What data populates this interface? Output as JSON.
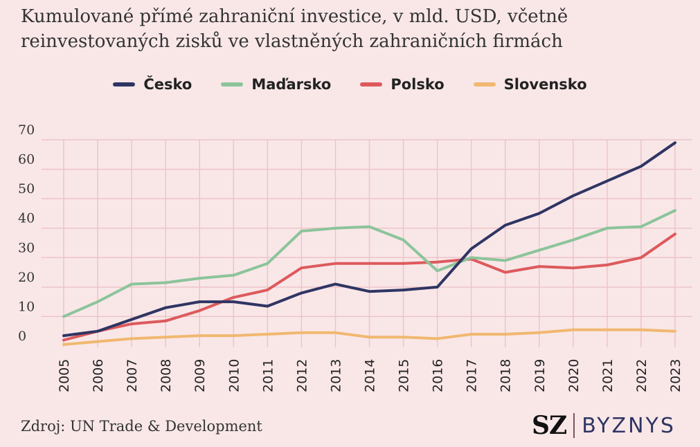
{
  "header": {
    "title_line1": "Kumulované přímé zahraniční investice, v mld. USD, včetně",
    "title_line2": "reinvestovaných zisků ve vlastněných zahraničních firmách"
  },
  "footer": {
    "source": "Zdroj: UN Trade & Development",
    "logo_sz": "SZ",
    "logo_byznys": "BYZNYS"
  },
  "colors": {
    "background": "#f9e7e8",
    "grid": "#edc3c9",
    "cesko": "#2f3563",
    "madarsko": "#8cc49a",
    "polsko": "#dd5a5c",
    "slovensko": "#f0b870"
  },
  "chart_data": {
    "type": "line",
    "title": "Kumulované přímé zahraniční investice, v mld. USD, včetně reinvestovaných zisků ve vlastněných zahraničních firmách",
    "xlabel": "",
    "ylabel": "",
    "ylim": [
      0,
      70
    ],
    "yticks": [
      0,
      10,
      20,
      30,
      40,
      50,
      60,
      70
    ],
    "grid": true,
    "legend_position": "top-center",
    "categories": [
      "2005",
      "2006",
      "2007",
      "2008",
      "2009",
      "2010",
      "2011",
      "2012",
      "2013",
      "2014",
      "2015",
      "2016",
      "2017",
      "2018",
      "2019",
      "2020",
      "2021",
      "2022",
      "2023"
    ],
    "series": [
      {
        "key": "cesko",
        "name": "Česko",
        "color": "#2f3563",
        "values": [
          3.5,
          5,
          9,
          13,
          15,
          15,
          13.5,
          18,
          21,
          18.5,
          19,
          20,
          33,
          41,
          45,
          51,
          56,
          61,
          69
        ]
      },
      {
        "key": "madarsko",
        "name": "Maďarsko",
        "color": "#8cc49a",
        "values": [
          10,
          15,
          21,
          21.5,
          23,
          24,
          28,
          39,
          40,
          40.5,
          36,
          25.5,
          30,
          29,
          32.5,
          36,
          40,
          40.5,
          46
        ]
      },
      {
        "key": "polsko",
        "name": "Polsko",
        "color": "#dd5a5c",
        "values": [
          2,
          5,
          7.5,
          8.5,
          12,
          16.5,
          19,
          26.5,
          28,
          28,
          28,
          28.5,
          29.5,
          25,
          27,
          26.5,
          27.5,
          30,
          38
        ]
      },
      {
        "key": "slovensko",
        "name": "Slovensko",
        "color": "#f0b870",
        "values": [
          0.5,
          1.5,
          2.5,
          3,
          3.5,
          3.5,
          4,
          4.5,
          4.5,
          3,
          3,
          2.5,
          4,
          4,
          4.5,
          5.5,
          5.5,
          5.5,
          5
        ]
      }
    ]
  }
}
